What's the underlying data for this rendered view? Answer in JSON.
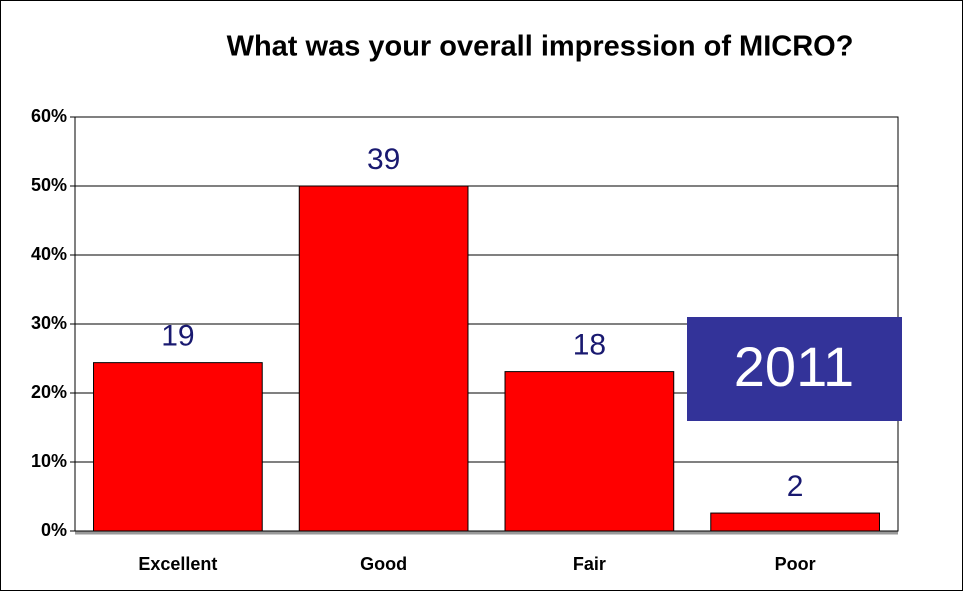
{
  "chart_data": {
    "type": "bar",
    "title": "What was your overall impression of MICRO?",
    "categories": [
      "Excellent",
      "Good",
      "Fair",
      "Poor"
    ],
    "values": [
      24.4,
      50,
      23.1,
      2.6
    ],
    "counts": [
      19,
      39,
      18,
      2
    ],
    "color": "#ff0000",
    "ylim": [
      0,
      60
    ],
    "yticks": [
      {
        "value": 0,
        "label": "0%"
      },
      {
        "value": 10,
        "label": "10%"
      },
      {
        "value": 20,
        "label": "20%"
      },
      {
        "value": 30,
        "label": "30%"
      },
      {
        "value": 40,
        "label": "40%"
      },
      {
        "value": 50,
        "label": "50%"
      },
      {
        "value": 60,
        "label": "60%"
      }
    ],
    "grid": true,
    "annotation": "2011",
    "annotation_color": "#333399"
  }
}
